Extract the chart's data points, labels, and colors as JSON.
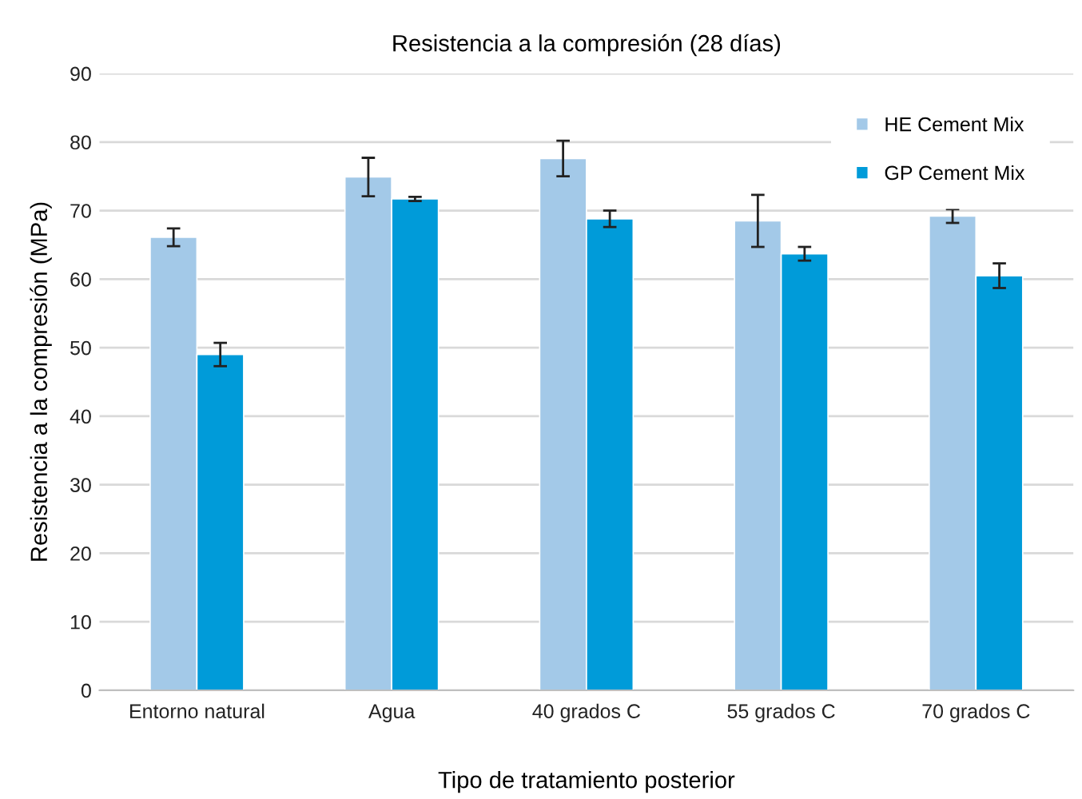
{
  "chart_data": {
    "type": "bar",
    "title": "Resistencia a la compresión (28 días)",
    "xlabel": "Tipo de tratamiento posterior",
    "ylabel": "Resistencia a la compresión (MPa)",
    "categories": [
      "Entorno natural",
      "Agua",
      "40 grados C",
      "55 grados C",
      "70 grados C"
    ],
    "series": [
      {
        "name": "HE Cement Mix",
        "color": "#a3c9e8",
        "values": [
          66.1,
          74.9,
          77.6,
          68.5,
          69.2
        ],
        "errors": [
          1.3,
          2.8,
          2.6,
          3.8,
          1.0
        ]
      },
      {
        "name": "GP Cement Mix",
        "color": "#009bd9",
        "values": [
          49.0,
          71.7,
          68.8,
          63.7,
          60.5
        ],
        "errors": [
          1.7,
          0.3,
          1.2,
          1.0,
          1.8
        ]
      }
    ],
    "ylim": [
      0,
      90
    ],
    "yticks": [
      0,
      10,
      20,
      30,
      40,
      50,
      60,
      70,
      80,
      90
    ],
    "grid": "y",
    "legend": "top right"
  }
}
